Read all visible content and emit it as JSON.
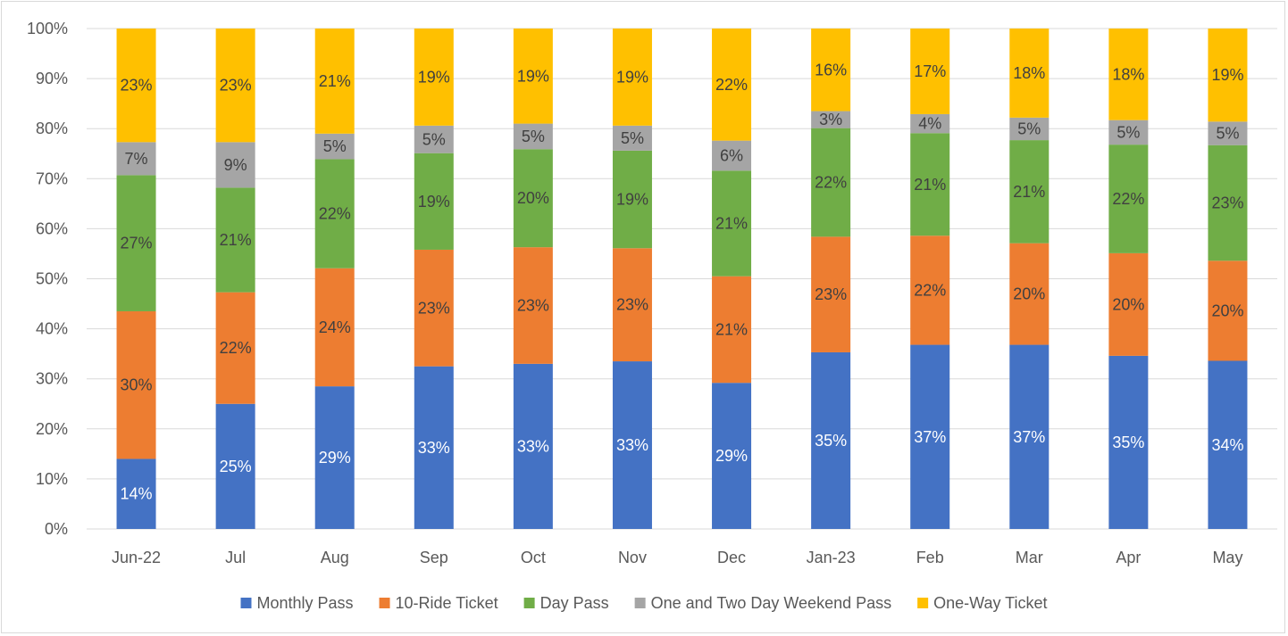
{
  "chart_data": {
    "type": "bar",
    "stacked": true,
    "normalized": true,
    "title": "",
    "xlabel": "",
    "ylabel": "",
    "ylim": [
      0,
      100
    ],
    "y_ticks": [
      "0%",
      "10%",
      "20%",
      "30%",
      "40%",
      "50%",
      "60%",
      "70%",
      "80%",
      "90%",
      "100%"
    ],
    "grid": true,
    "legend_position": "bottom",
    "categories": [
      "Jun-22",
      "Jul",
      "Aug",
      "Sep",
      "Oct",
      "Nov",
      "Dec",
      "Jan-23",
      "Feb",
      "Mar",
      "Apr",
      "May"
    ],
    "series": [
      {
        "name": "Monthly Pass",
        "color": "#4472C4",
        "label_color": "#ffffff",
        "values": [
          14,
          25,
          28.5,
          32.5,
          33,
          33.5,
          29.2,
          35.3,
          36.8,
          36.8,
          34.6,
          33.6
        ],
        "labels": [
          "14%",
          "25%",
          "29%",
          "33%",
          "33%",
          "33%",
          "29%",
          "35%",
          "37%",
          "37%",
          "35%",
          "34%"
        ]
      },
      {
        "name": "10-Ride Ticket",
        "color": "#ED7D31",
        "label_color": "#404040",
        "values": [
          29.5,
          22.3,
          23.6,
          23.3,
          23.3,
          22.6,
          21.3,
          23.1,
          21.8,
          20.3,
          20.5,
          20
        ],
        "labels": [
          "30%",
          "22%",
          "24%",
          "23%",
          "23%",
          "23%",
          "21%",
          "23%",
          "22%",
          "20%",
          "20%",
          "20%"
        ]
      },
      {
        "name": "Day Pass",
        "color": "#70AD47",
        "label_color": "#404040",
        "values": [
          27.2,
          20.9,
          21.8,
          19.3,
          19.6,
          19.5,
          21.1,
          21.7,
          20.5,
          20.6,
          21.7,
          23.1
        ],
        "labels": [
          "27%",
          "21%",
          "22%",
          "19%",
          "20%",
          "19%",
          "21%",
          "22%",
          "21%",
          "21%",
          "22%",
          "23%"
        ]
      },
      {
        "name": "One and Two Day Weekend Pass",
        "color": "#A5A5A5",
        "label_color": "#404040",
        "values": [
          6.6,
          9.1,
          5.1,
          5.5,
          5.1,
          5,
          6,
          3.4,
          3.8,
          4.5,
          4.9,
          4.7
        ],
        "labels": [
          "7%",
          "9%",
          "5%",
          "5%",
          "5%",
          "5%",
          "6%",
          "3%",
          "4%",
          "5%",
          "5%",
          "5%"
        ]
      },
      {
        "name": "One-Way Ticket",
        "color": "#FFC000",
        "label_color": "#404040",
        "values": [
          22.7,
          22.7,
          21,
          19.4,
          19,
          19.4,
          22.4,
          16.5,
          17.1,
          17.8,
          18.3,
          18.6
        ],
        "labels": [
          "23%",
          "23%",
          "21%",
          "19%",
          "19%",
          "19%",
          "22%",
          "16%",
          "17%",
          "18%",
          "18%",
          "19%"
        ]
      }
    ]
  }
}
